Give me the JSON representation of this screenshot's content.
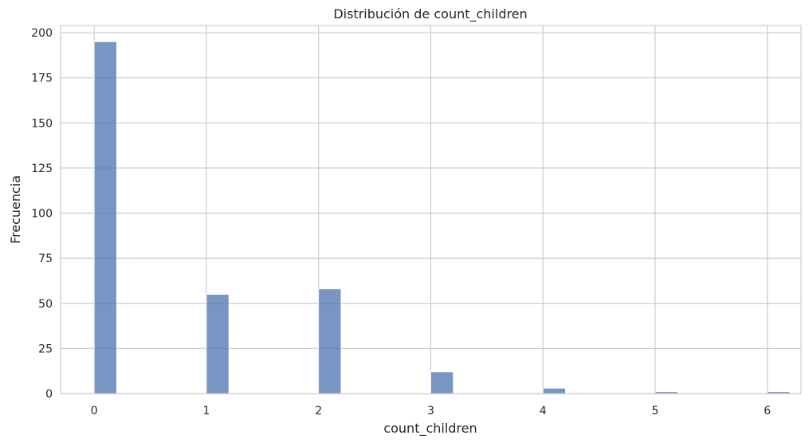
{
  "chart_data": {
    "type": "bar",
    "title": "Distribución de count_children",
    "xlabel": "count_children",
    "ylabel": "Frecuencia",
    "xlim": [
      -0.3,
      6.3
    ],
    "ylim": [
      0,
      204
    ],
    "xticks": [
      0,
      1,
      2,
      3,
      4,
      5,
      6
    ],
    "yticks": [
      0,
      25,
      50,
      75,
      100,
      125,
      150,
      175,
      200
    ],
    "grid": true,
    "bin_width": 0.2,
    "bars": [
      {
        "x": 0,
        "value": 195
      },
      {
        "x": 1,
        "value": 55
      },
      {
        "x": 2,
        "value": 58
      },
      {
        "x": 3,
        "value": 12
      },
      {
        "x": 4,
        "value": 3
      },
      {
        "x": 5,
        "value": 1
      },
      {
        "x": 6,
        "value": 1
      }
    ],
    "bar_color": "#4c72b0"
  }
}
